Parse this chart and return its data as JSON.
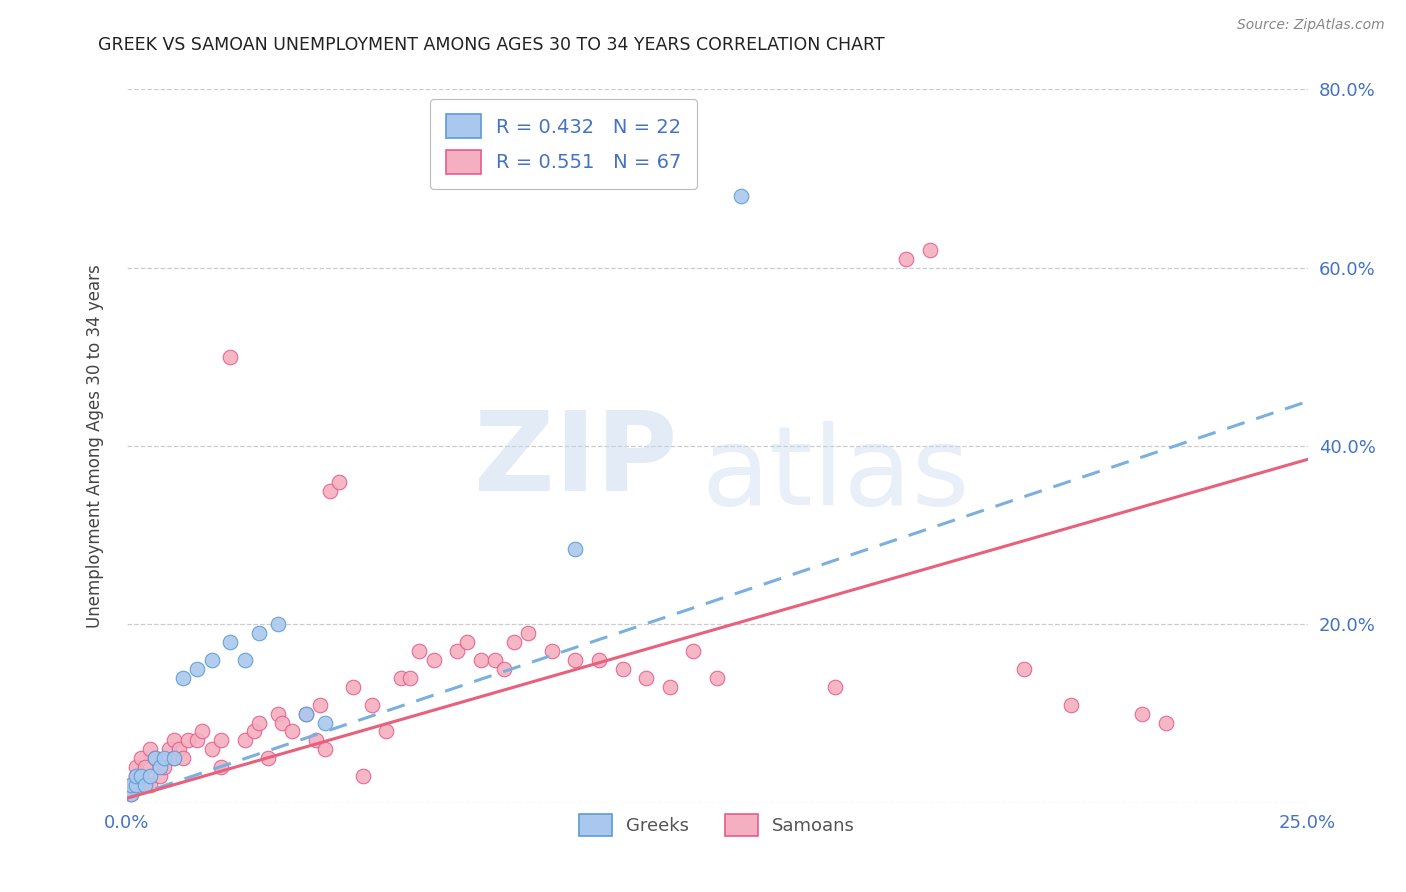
{
  "title": "GREEK VS SAMOAN UNEMPLOYMENT AMONG AGES 30 TO 34 YEARS CORRELATION CHART",
  "source": "Source: ZipAtlas.com",
  "ylabel": "Unemployment Among Ages 30 to 34 years",
  "xlim": [
    0.0,
    0.25
  ],
  "ylim": [
    0.0,
    0.8
  ],
  "xtick_positions": [
    0.0,
    0.05,
    0.1,
    0.15,
    0.2,
    0.25
  ],
  "xtick_labels": [
    "0.0%",
    "",
    "",
    "",
    "",
    "25.0%"
  ],
  "ytick_positions": [
    0.0,
    0.2,
    0.4,
    0.6,
    0.8
  ],
  "ytick_labels_right": [
    "",
    "20.0%",
    "40.0%",
    "60.0%",
    "80.0%"
  ],
  "greek_fill_color": "#aac8ed",
  "greek_edge_color": "#5b9bd5",
  "samoan_fill_color": "#f4afc0",
  "samoan_edge_color": "#e85b8a",
  "greek_line_color": "#7ab0e0",
  "samoan_line_color": "#e8607a",
  "background_color": "#ffffff",
  "grid_color": "#cccccc",
  "tick_label_color": "#4472c4",
  "greek_R": 0.432,
  "greek_N": 22,
  "samoan_R": 0.551,
  "samoan_N": 67,
  "greek_trendline_x": [
    0.0,
    0.25
  ],
  "greek_trendline_y": [
    0.005,
    0.45
  ],
  "samoan_trendline_x": [
    0.0,
    0.25
  ],
  "samoan_trendline_y": [
    0.005,
    0.385
  ],
  "greeks_x": [
    0.001,
    0.001,
    0.002,
    0.002,
    0.003,
    0.004,
    0.005,
    0.006,
    0.007,
    0.008,
    0.01,
    0.012,
    0.015,
    0.018,
    0.022,
    0.025,
    0.028,
    0.032,
    0.038,
    0.042,
    0.095,
    0.13
  ],
  "greeks_y": [
    0.01,
    0.02,
    0.02,
    0.03,
    0.03,
    0.02,
    0.03,
    0.05,
    0.04,
    0.05,
    0.05,
    0.14,
    0.15,
    0.16,
    0.18,
    0.16,
    0.19,
    0.2,
    0.1,
    0.09,
    0.285,
    0.68
  ],
  "samoans_x": [
    0.001,
    0.001,
    0.002,
    0.002,
    0.003,
    0.003,
    0.004,
    0.005,
    0.005,
    0.006,
    0.007,
    0.008,
    0.009,
    0.01,
    0.01,
    0.011,
    0.012,
    0.013,
    0.015,
    0.016,
    0.018,
    0.02,
    0.02,
    0.022,
    0.025,
    0.027,
    0.028,
    0.03,
    0.032,
    0.033,
    0.035,
    0.038,
    0.04,
    0.041,
    0.042,
    0.043,
    0.045,
    0.048,
    0.05,
    0.052,
    0.055,
    0.058,
    0.06,
    0.062,
    0.065,
    0.07,
    0.072,
    0.075,
    0.078,
    0.08,
    0.082,
    0.085,
    0.09,
    0.095,
    0.1,
    0.105,
    0.11,
    0.115,
    0.12,
    0.125,
    0.15,
    0.165,
    0.17,
    0.19,
    0.2,
    0.215,
    0.22
  ],
  "samoans_y": [
    0.01,
    0.02,
    0.03,
    0.04,
    0.03,
    0.05,
    0.04,
    0.02,
    0.06,
    0.05,
    0.03,
    0.04,
    0.06,
    0.05,
    0.07,
    0.06,
    0.05,
    0.07,
    0.07,
    0.08,
    0.06,
    0.04,
    0.07,
    0.5,
    0.07,
    0.08,
    0.09,
    0.05,
    0.1,
    0.09,
    0.08,
    0.1,
    0.07,
    0.11,
    0.06,
    0.35,
    0.36,
    0.13,
    0.03,
    0.11,
    0.08,
    0.14,
    0.14,
    0.17,
    0.16,
    0.17,
    0.18,
    0.16,
    0.16,
    0.15,
    0.18,
    0.19,
    0.17,
    0.16,
    0.16,
    0.15,
    0.14,
    0.13,
    0.17,
    0.14,
    0.13,
    0.61,
    0.62,
    0.15,
    0.11,
    0.1,
    0.09
  ]
}
